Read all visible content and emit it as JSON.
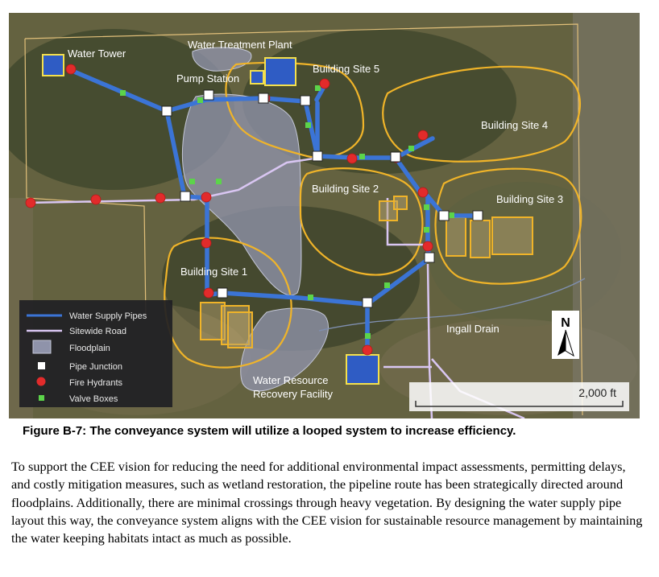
{
  "map": {
    "labels": {
      "water_tower": "Water Tower",
      "water_treatment_plant": "Water Treatment Plant",
      "pump_station": "Pump Station",
      "building_site_1": "Building Site 1",
      "building_site_2": "Building Site 2",
      "building_site_3": "Building Site 3",
      "building_site_4": "Building Site 4",
      "building_site_5": "Building Site 5",
      "ingall_drain": "Ingall Drain",
      "wrrf_line1": "Water Resource",
      "wrrf_line2": "Recovery Facility"
    },
    "legend": {
      "items": [
        {
          "label": "Water Supply Pipes",
          "symbol": "line",
          "color": "#3b74d6"
        },
        {
          "label": "Sitewide Road",
          "symbol": "line",
          "color": "#d9c6f2"
        },
        {
          "label": "Floodplain",
          "symbol": "area",
          "color": "#8a8fa8"
        },
        {
          "label": "Pipe Junction",
          "symbol": "square",
          "color": "#ffffff"
        },
        {
          "label": "Fire Hydrants",
          "symbol": "circle",
          "color": "#e22b2b"
        },
        {
          "label": "Valve Boxes",
          "symbol": "small-square",
          "color": "#5cd44a"
        }
      ]
    },
    "north_arrow": "N",
    "scale_bar": "2,000 ft",
    "colors": {
      "pipe": "#3b74d6",
      "road": "#d9c6f2",
      "site_outline": "#f0b429",
      "building_fill": "#2f5cc4",
      "building_outline": "#f4e04d",
      "hydrant": "#e22b2b",
      "valve": "#5cd44a",
      "junction": "#ffffff",
      "floodplain": "#8a8fa8"
    }
  },
  "caption": "Figure B-7: The conveyance system will utilize a looped system to increase efficiency.",
  "body_text": "To support the CEE vision for reducing the need for additional environmental impact assessments, permitting delays, and costly mitigation measures, such as wetland restoration, the pipeline route has been strategically directed around floodplains. Additionally, there are minimal crossings through heavy vegetation. By designing the water supply pipe layout this way, the conveyance system aligns with the CEE vision for sustainable resource management by maintaining the water keeping habitats intact as much as possible."
}
